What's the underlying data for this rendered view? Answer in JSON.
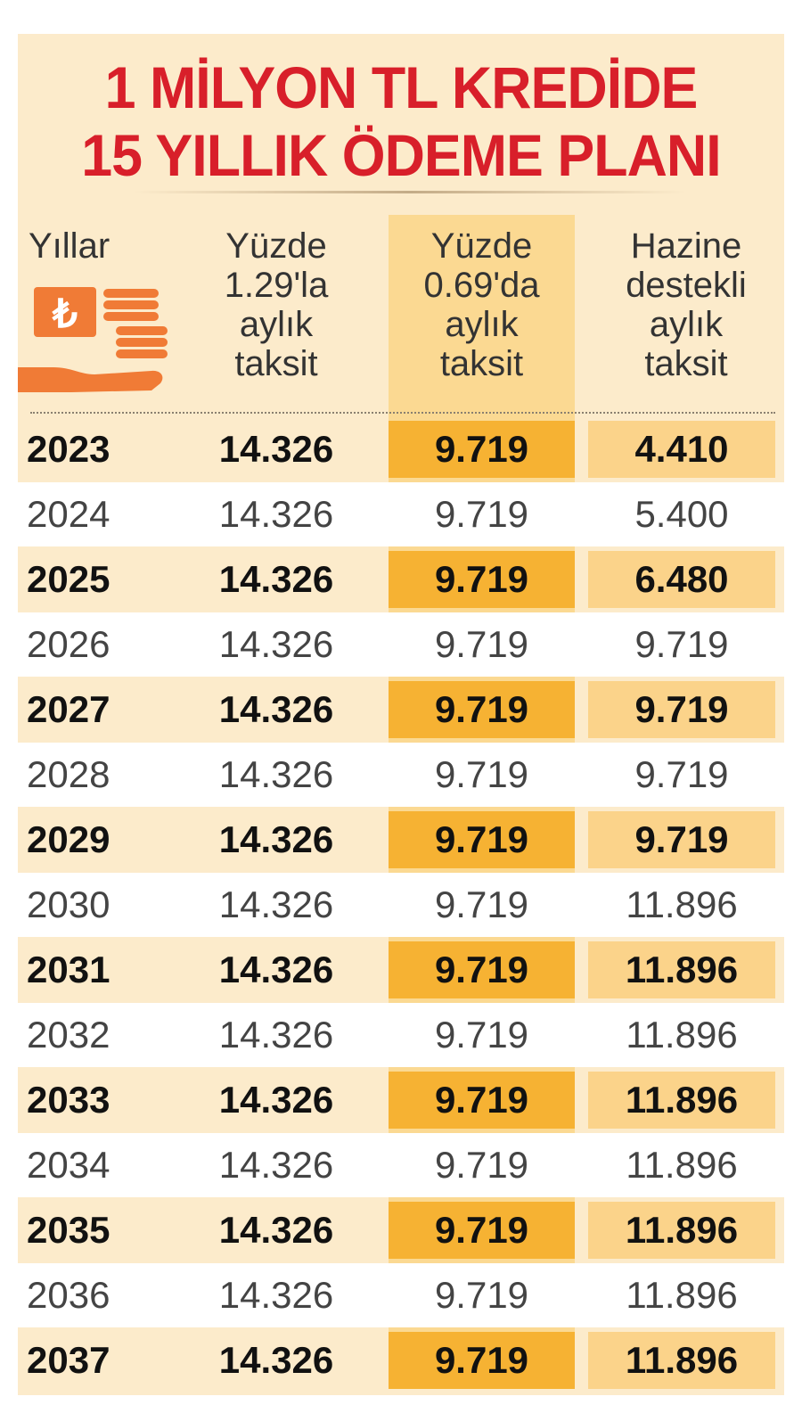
{
  "title_lines": [
    "1 MİLYON TL KREDİDE",
    "15 YILLIK ÖDEME PLANI"
  ],
  "headers": {
    "years": "Yıllar",
    "col1": [
      "Yüzde",
      "1.29'la",
      "aylık",
      "taksit"
    ],
    "col2": [
      "Yüzde",
      "0.69'da",
      "aylık",
      "taksit"
    ],
    "col3": [
      "Hazine",
      "destekli",
      "aylık",
      "taksit"
    ]
  },
  "icon": "lira-coins-hand-icon",
  "colors": {
    "title": "#d81f2a",
    "card_bg": "#fcebcb",
    "highlight_column": "#f6b233",
    "icon": "#f07b36"
  },
  "chart_data": {
    "type": "table",
    "title": "1 MİLYON TL KREDİDE 15 YILLIK ÖDEME PLANI",
    "columns": [
      "Yıllar",
      "Yüzde 1.29'la aylık taksit",
      "Yüzde 0.69'da aylık taksit",
      "Hazine destekli aylık taksit"
    ],
    "rows": [
      [
        "2023",
        "14.326",
        "9.719",
        "4.410"
      ],
      [
        "2024",
        "14.326",
        "9.719",
        "5.400"
      ],
      [
        "2025",
        "14.326",
        "9.719",
        "6.480"
      ],
      [
        "2026",
        "14.326",
        "9.719",
        "9.719"
      ],
      [
        "2027",
        "14.326",
        "9.719",
        "9.719"
      ],
      [
        "2028",
        "14.326",
        "9.719",
        "9.719"
      ],
      [
        "2029",
        "14.326",
        "9.719",
        "9.719"
      ],
      [
        "2030",
        "14.326",
        "9.719",
        "11.896"
      ],
      [
        "2031",
        "14.326",
        "9.719",
        "11.896"
      ],
      [
        "2032",
        "14.326",
        "9.719",
        "11.896"
      ],
      [
        "2033",
        "14.326",
        "9.719",
        "11.896"
      ],
      [
        "2034",
        "14.326",
        "9.719",
        "11.896"
      ],
      [
        "2035",
        "14.326",
        "9.719",
        "11.896"
      ],
      [
        "2036",
        "14.326",
        "9.719",
        "11.896"
      ],
      [
        "2037",
        "14.326",
        "9.719",
        "11.896"
      ]
    ]
  }
}
